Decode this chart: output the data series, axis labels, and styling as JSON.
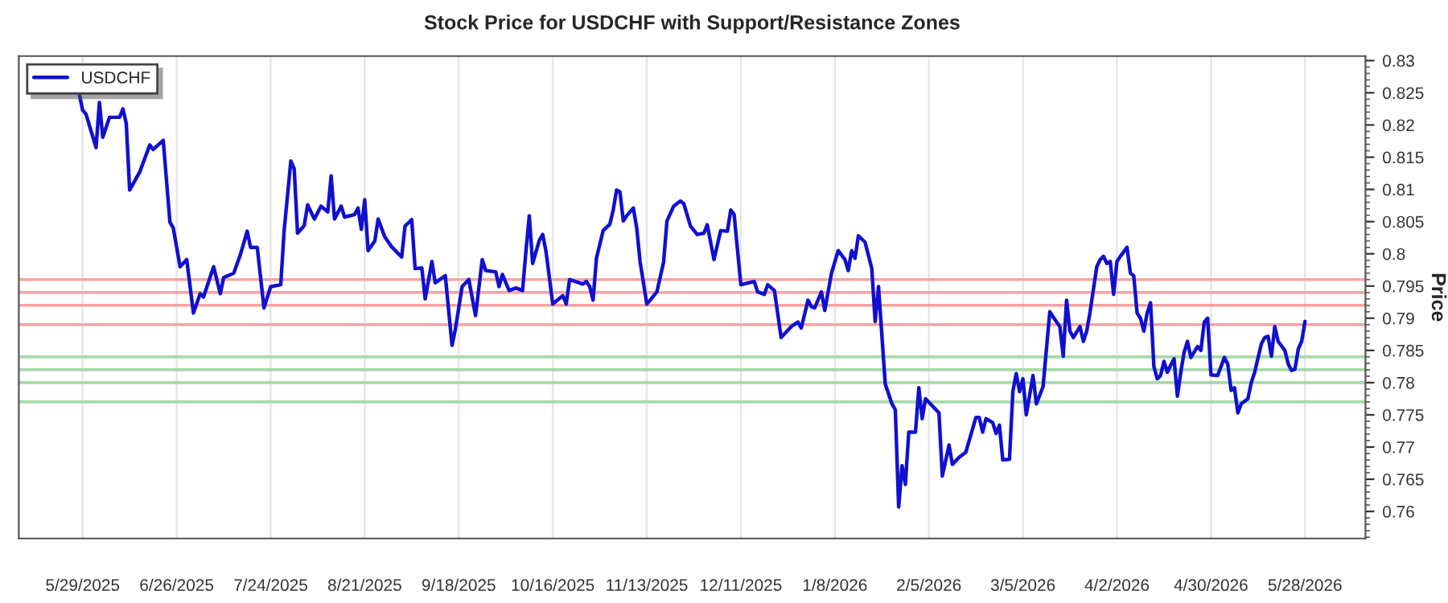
{
  "chart_data": {
    "type": "line",
    "title": "Stock Price for USDCHF with Support/Resistance Zones",
    "ylabel": "Price",
    "xlim": [
      "2025-05-10",
      "2026-06-15"
    ],
    "ylim": [
      0.7558,
      0.8307
    ],
    "xticks": [
      {
        "value": "2025-05-29",
        "label": "5/29/2025"
      },
      {
        "value": "2025-06-26",
        "label": "6/26/2025"
      },
      {
        "value": "2025-07-24",
        "label": "7/24/2025"
      },
      {
        "value": "2025-08-21",
        "label": "8/21/2025"
      },
      {
        "value": "2025-09-18",
        "label": "9/18/2025"
      },
      {
        "value": "2025-10-16",
        "label": "10/16/2025"
      },
      {
        "value": "2025-11-13",
        "label": "11/13/2025"
      },
      {
        "value": "2025-12-11",
        "label": "12/11/2025"
      },
      {
        "value": "2026-01-08",
        "label": "1/8/2026"
      },
      {
        "value": "2026-02-05",
        "label": "2/5/2026"
      },
      {
        "value": "2026-03-05",
        "label": "3/5/2026"
      },
      {
        "value": "2026-04-02",
        "label": "4/2/2026"
      },
      {
        "value": "2026-04-30",
        "label": "4/30/2026"
      },
      {
        "value": "2026-05-28",
        "label": "5/28/2026"
      }
    ],
    "yticks": [
      0.76,
      0.765,
      0.77,
      0.775,
      0.78,
      0.785,
      0.79,
      0.795,
      0.8,
      0.805,
      0.81,
      0.815,
      0.82,
      0.825,
      0.83
    ],
    "grid": "x",
    "legend": "top left",
    "marker": "none",
    "line_style": "solid",
    "ref_lines": [
      {
        "axis": "y",
        "value": 0.796,
        "color": "#f5a3a3"
      },
      {
        "axis": "y",
        "value": 0.794,
        "color": "#f5a3a3"
      },
      {
        "axis": "y",
        "value": 0.792,
        "color": "#f5a3a3"
      },
      {
        "axis": "y",
        "value": 0.789,
        "color": "#f5a3a3"
      },
      {
        "axis": "y",
        "value": 0.784,
        "color": "#a9d9a9"
      },
      {
        "axis": "y",
        "value": 0.782,
        "color": "#a9d9a9"
      },
      {
        "axis": "y",
        "value": 0.78,
        "color": "#a9d9a9"
      },
      {
        "axis": "y",
        "value": 0.777,
        "color": "#a9d9a9"
      }
    ],
    "series": [
      {
        "name": "USDCHF",
        "color": "#1010d0",
        "x": [
          "2025-05-28",
          "2025-05-29",
          "2025-05-30",
          "2025-06-02",
          "2025-06-03",
          "2025-06-04",
          "2025-06-06",
          "2025-06-09",
          "2025-06-10",
          "2025-06-11",
          "2025-06-12",
          "2025-06-15",
          "2025-06-18",
          "2025-06-19",
          "2025-06-22",
          "2025-06-24",
          "2025-06-25",
          "2025-06-27",
          "2025-06-29",
          "2025-07-01",
          "2025-07-03",
          "2025-07-04",
          "2025-07-07",
          "2025-07-09",
          "2025-07-10",
          "2025-07-13",
          "2025-07-15",
          "2025-07-17",
          "2025-07-18",
          "2025-07-20",
          "2025-07-22",
          "2025-07-24",
          "2025-07-27",
          "2025-07-28",
          "2025-07-30",
          "2025-07-31",
          "2025-08-01",
          "2025-08-03",
          "2025-08-04",
          "2025-08-06",
          "2025-08-08",
          "2025-08-10",
          "2025-08-11",
          "2025-08-12",
          "2025-08-14",
          "2025-08-15",
          "2025-08-18",
          "2025-08-19",
          "2025-08-20",
          "2025-08-21",
          "2025-08-22",
          "2025-08-24",
          "2025-08-25",
          "2025-08-27",
          "2025-08-29",
          "2025-09-01",
          "2025-09-02",
          "2025-09-04",
          "2025-09-05",
          "2025-09-07",
          "2025-09-08",
          "2025-09-10",
          "2025-09-11",
          "2025-09-14",
          "2025-09-16",
          "2025-09-17",
          "2025-09-19",
          "2025-09-21",
          "2025-09-23",
          "2025-09-25",
          "2025-09-26",
          "2025-09-29",
          "2025-09-30",
          "2025-10-01",
          "2025-10-03",
          "2025-10-05",
          "2025-10-07",
          "2025-10-08",
          "2025-10-09",
          "2025-10-10",
          "2025-10-12",
          "2025-10-13",
          "2025-10-14",
          "2025-10-16",
          "2025-10-19",
          "2025-10-20",
          "2025-10-21",
          "2025-10-25",
          "2025-10-26",
          "2025-10-27",
          "2025-10-28",
          "2025-10-29",
          "2025-10-31",
          "2025-11-02",
          "2025-11-03",
          "2025-11-04",
          "2025-11-05",
          "2025-11-06",
          "2025-11-07",
          "2025-11-09",
          "2025-11-10",
          "2025-11-11",
          "2025-11-13",
          "2025-11-14",
          "2025-11-16",
          "2025-11-18",
          "2025-11-19",
          "2025-11-21",
          "2025-11-23",
          "2025-11-24",
          "2025-11-26",
          "2025-11-28",
          "2025-11-30",
          "2025-12-01",
          "2025-12-03",
          "2025-12-05",
          "2025-12-07",
          "2025-12-08",
          "2025-12-09",
          "2025-12-11",
          "2025-12-15",
          "2025-12-16",
          "2025-12-18",
          "2025-12-19",
          "2025-12-21",
          "2025-12-23",
          "2025-12-26",
          "2025-12-28",
          "2025-12-29",
          "2025-12-31",
          "2026-01-01",
          "2026-01-02",
          "2026-01-04",
          "2026-01-05",
          "2026-01-07",
          "2026-01-09",
          "2026-01-11",
          "2026-01-12",
          "2026-01-13",
          "2026-01-14",
          "2026-01-15",
          "2026-01-17",
          "2026-01-19",
          "2026-01-20",
          "2026-01-21",
          "2026-01-23",
          "2026-01-25",
          "2026-01-26",
          "2026-01-27",
          "2026-01-28",
          "2026-01-29",
          "2026-01-30",
          "2026-02-01",
          "2026-02-02",
          "2026-02-03",
          "2026-02-04",
          "2026-02-08",
          "2026-02-09",
          "2026-02-11",
          "2026-02-12",
          "2026-02-14",
          "2026-02-16",
          "2026-02-18",
          "2026-02-19",
          "2026-02-20",
          "2026-02-21",
          "2026-02-22",
          "2026-02-24",
          "2026-02-25",
          "2026-02-26",
          "2026-02-27",
          "2026-03-01",
          "2026-03-02",
          "2026-03-03",
          "2026-03-04",
          "2026-03-05",
          "2026-03-06",
          "2026-03-08",
          "2026-03-09",
          "2026-03-11",
          "2026-03-13",
          "2026-03-14",
          "2026-03-16",
          "2026-03-17",
          "2026-03-18",
          "2026-03-19",
          "2026-03-20",
          "2026-03-22",
          "2026-03-23",
          "2026-03-24",
          "2026-03-25",
          "2026-03-27",
          "2026-03-28",
          "2026-03-29",
          "2026-03-30",
          "2026-03-31",
          "2026-04-01",
          "2026-04-02",
          "2026-04-03",
          "2026-04-05",
          "2026-04-06",
          "2026-04-07",
          "2026-04-08",
          "2026-04-09",
          "2026-04-10",
          "2026-04-11",
          "2026-04-12",
          "2026-04-13",
          "2026-04-14",
          "2026-04-15",
          "2026-04-16",
          "2026-04-17",
          "2026-04-18",
          "2026-04-19",
          "2026-04-20",
          "2026-04-21",
          "2026-04-22",
          "2026-04-23",
          "2026-04-24",
          "2026-04-26",
          "2026-04-27",
          "2026-04-28",
          "2026-04-29",
          "2026-04-30",
          "2026-05-02",
          "2026-05-04",
          "2026-05-05",
          "2026-05-06",
          "2026-05-07",
          "2026-05-08",
          "2026-05-09",
          "2026-05-11",
          "2026-05-12",
          "2026-05-13",
          "2026-05-15",
          "2026-05-16",
          "2026-05-17",
          "2026-05-18",
          "2026-05-19",
          "2026-05-20",
          "2026-05-22",
          "2026-05-23",
          "2026-05-24",
          "2026-05-25",
          "2026-05-26",
          "2026-05-27",
          "2026-05-28"
        ],
        "values": [
          0.8248,
          0.8223,
          0.8217,
          0.8165,
          0.8235,
          0.8181,
          0.8212,
          0.8212,
          0.8225,
          0.8202,
          0.8099,
          0.8127,
          0.8169,
          0.8162,
          0.8176,
          0.8049,
          0.804,
          0.798,
          0.7991,
          0.7908,
          0.7938,
          0.7933,
          0.798,
          0.7938,
          0.7963,
          0.797,
          0.7999,
          0.8035,
          0.801,
          0.801,
          0.7916,
          0.7949,
          0.7952,
          0.8036,
          0.8144,
          0.8132,
          0.8032,
          0.8044,
          0.8076,
          0.8054,
          0.8074,
          0.8065,
          0.8121,
          0.8054,
          0.8074,
          0.8057,
          0.8061,
          0.8071,
          0.8038,
          0.8084,
          0.8005,
          0.802,
          0.8054,
          0.8026,
          0.8011,
          0.7995,
          0.8043,
          0.8053,
          0.7977,
          0.7978,
          0.793,
          0.7988,
          0.7955,
          0.7966,
          0.7858,
          0.7883,
          0.7949,
          0.796,
          0.7904,
          0.7991,
          0.7974,
          0.7972,
          0.7949,
          0.7968,
          0.7943,
          0.7947,
          0.7943,
          0.8003,
          0.8059,
          0.7985,
          0.8021,
          0.803,
          0.8003,
          0.7922,
          0.7935,
          0.7922,
          0.796,
          0.7953,
          0.7957,
          0.7949,
          0.7928,
          0.7993,
          0.8036,
          0.8046,
          0.8068,
          0.8099,
          0.8096,
          0.8051,
          0.8059,
          0.8071,
          0.804,
          0.7988,
          0.7922,
          0.7928,
          0.7941,
          0.7987,
          0.8051,
          0.8074,
          0.8082,
          0.8078,
          0.8043,
          0.803,
          0.8032,
          0.8045,
          0.7991,
          0.8036,
          0.8035,
          0.8068,
          0.8061,
          0.7952,
          0.7957,
          0.7941,
          0.7937,
          0.7952,
          0.7943,
          0.787,
          0.7887,
          0.7894,
          0.7885,
          0.7928,
          0.7918,
          0.7916,
          0.7941,
          0.7912,
          0.797,
          0.8005,
          0.7991,
          0.7974,
          0.8005,
          0.7993,
          0.8028,
          0.8018,
          0.7977,
          0.7895,
          0.7949,
          0.7798,
          0.7767,
          0.7758,
          0.7607,
          0.7671,
          0.7642,
          0.7723,
          0.7723,
          0.7792,
          0.7744,
          0.7775,
          0.7753,
          0.7655,
          0.7703,
          0.7673,
          0.7684,
          0.7692,
          0.7728,
          0.7746,
          0.7746,
          0.7723,
          0.7744,
          0.7738,
          0.7721,
          0.7734,
          0.768,
          0.7681,
          0.7786,
          0.7814,
          0.7786,
          0.7806,
          0.775,
          0.7811,
          0.7767,
          0.7794,
          0.791,
          0.7902,
          0.7887,
          0.7841,
          0.7928,
          0.788,
          0.787,
          0.7887,
          0.7864,
          0.788,
          0.791,
          0.798,
          0.7991,
          0.7996,
          0.7985,
          0.7988,
          0.7937,
          0.7988,
          0.7996,
          0.801,
          0.797,
          0.7966,
          0.7908,
          0.79,
          0.788,
          0.7908,
          0.7924,
          0.7825,
          0.7806,
          0.7811,
          0.7833,
          0.7816,
          0.7827,
          0.7837,
          0.7779,
          0.7816,
          0.7847,
          0.7864,
          0.7839,
          0.7856,
          0.785,
          0.7894,
          0.79,
          0.7812,
          0.7811,
          0.7839,
          0.7829,
          0.7788,
          0.7792,
          0.7753,
          0.7767,
          0.7775,
          0.78,
          0.7816,
          0.786,
          0.787,
          0.7872,
          0.7841,
          0.7887,
          0.7864,
          0.785,
          0.7829,
          0.7819,
          0.7821,
          0.7852,
          0.7864,
          0.7895
        ]
      }
    ]
  }
}
